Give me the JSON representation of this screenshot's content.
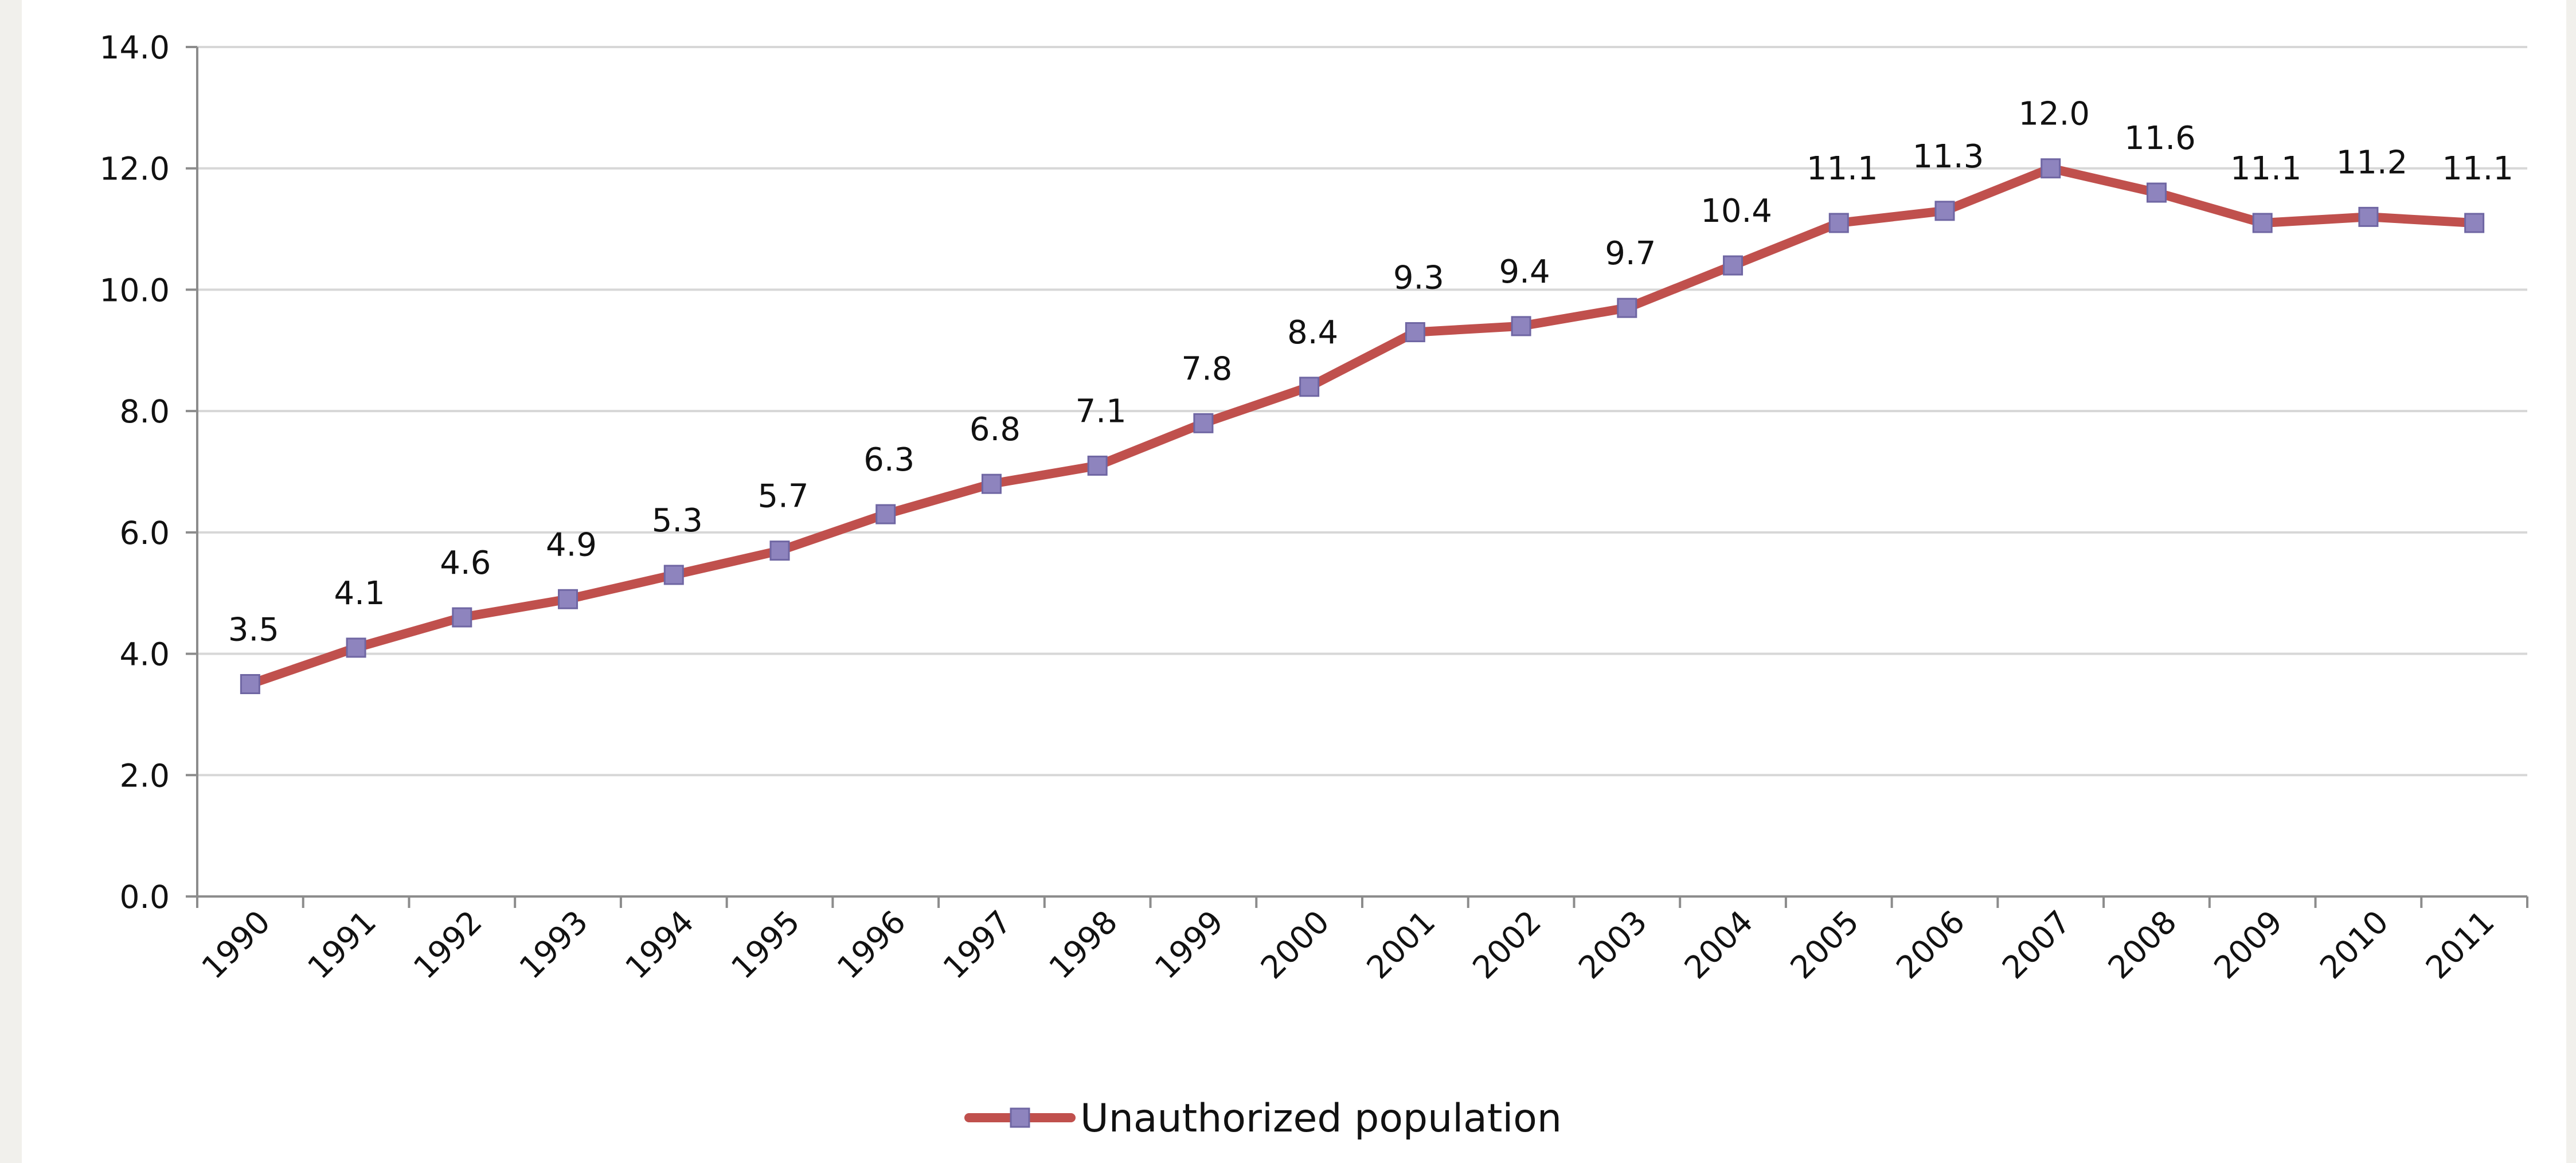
{
  "chart_data": {
    "type": "line",
    "title": "",
    "xlabel": "",
    "ylabel": "",
    "ylim": [
      0,
      14
    ],
    "y_ticks": [
      "0.0",
      "2.0",
      "4.0",
      "6.0",
      "8.0",
      "10.0",
      "12.0",
      "14.0"
    ],
    "x": [
      "1990",
      "1991",
      "1992",
      "1993",
      "1994",
      "1995",
      "1996",
      "1997",
      "1998",
      "1999",
      "2000",
      "2001",
      "2002",
      "2003",
      "2004",
      "2005",
      "2006",
      "2007",
      "2008",
      "2009",
      "2010",
      "2011"
    ],
    "series": [
      {
        "name": "Unauthorized population",
        "values": [
          3.5,
          4.1,
          4.6,
          4.9,
          5.3,
          5.7,
          6.3,
          6.8,
          7.1,
          7.8,
          8.4,
          9.3,
          9.4,
          9.7,
          10.4,
          11.1,
          11.3,
          12.0,
          11.6,
          11.1,
          11.2,
          11.1
        ],
        "labels": [
          "3.5",
          "4.1",
          "4.6",
          "4.9",
          "5.3",
          "5.7",
          "6.3",
          "6.8",
          "7.1",
          "7.8",
          "8.4",
          "9.3",
          "9.4",
          "9.7",
          "10.4",
          "11.1",
          "11.3",
          "12.0",
          "11.6",
          "11.1",
          "11.2",
          "11.1"
        ],
        "line_color": "#c0504d",
        "marker_color": "#8e84be",
        "marker": "square"
      }
    ],
    "grid": true,
    "legend": "bottom-center"
  }
}
